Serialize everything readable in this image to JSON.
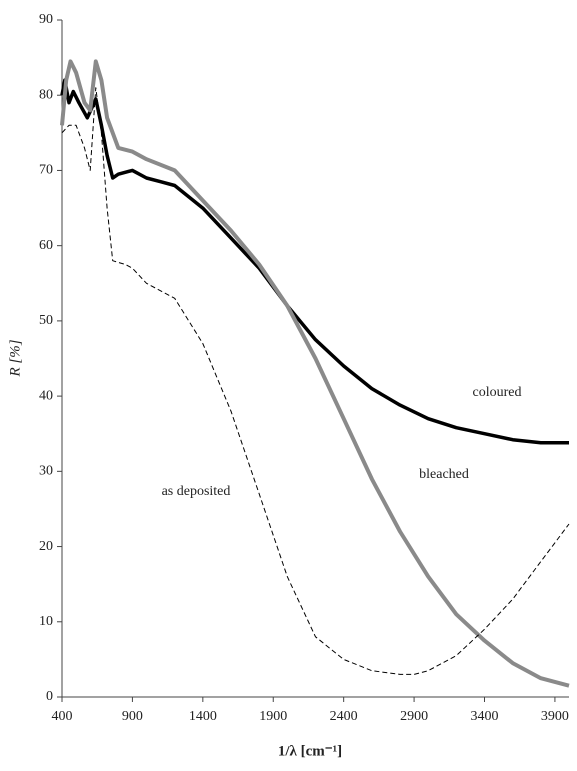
{
  "chart_data": {
    "type": "line",
    "x_label": "1/λ [cm⁻¹]",
    "y_label": "R [%]",
    "xlim": [
      400,
      4000
    ],
    "xticks": [
      400,
      900,
      1400,
      1900,
      2400,
      2900,
      3400,
      3900
    ],
    "ylim": [
      0,
      90
    ],
    "yticks": [
      0,
      10,
      20,
      30,
      40,
      50,
      60,
      70,
      80,
      90
    ],
    "grid": false,
    "legend": false,
    "annotations": [
      "coloured",
      "bleached",
      "as deposited"
    ],
    "series": [
      {
        "name": "coloured",
        "color": "#000000",
        "width": 3.5,
        "line_style": "solid",
        "x": [
          400,
          420,
          450,
          480,
          520,
          580,
          640,
          680,
          720,
          760,
          800,
          900,
          1000,
          1100,
          1200,
          1400,
          1600,
          1800,
          2000,
          2200,
          2400,
          2600,
          2800,
          3000,
          3200,
          3400,
          3600,
          3800,
          4000
        ],
        "values": [
          80,
          82,
          79,
          80.5,
          79,
          77,
          79.5,
          76,
          72,
          69,
          69.5,
          70,
          69,
          68.5,
          68,
          65,
          61,
          57,
          52,
          47.5,
          44,
          41,
          38.8,
          37,
          35.8,
          35,
          34.2,
          33.8,
          33.8
        ]
      },
      {
        "name": "bleached",
        "color": "#8a8a8a",
        "width": 4,
        "line_style": "solid",
        "x": [
          400,
          430,
          460,
          500,
          560,
          600,
          640,
          680,
          720,
          800,
          900,
          1000,
          1200,
          1400,
          1600,
          1800,
          2000,
          2200,
          2400,
          2600,
          2800,
          3000,
          3200,
          3400,
          3600,
          3800,
          4000
        ],
        "values": [
          76,
          82,
          84.5,
          83,
          79,
          78,
          84.5,
          82,
          77,
          73,
          72.5,
          71.5,
          70,
          66,
          62,
          57.5,
          52,
          45,
          37,
          29,
          22,
          16,
          11,
          7.5,
          4.5,
          2.5,
          1.5
        ]
      },
      {
        "name": "as deposited",
        "color": "#000000",
        "width": 1,
        "line_style": "dashed",
        "x": [
          400,
          450,
          500,
          560,
          600,
          640,
          680,
          720,
          760,
          850,
          900,
          1000,
          1100,
          1200,
          1400,
          1600,
          1800,
          2000,
          2200,
          2400,
          2600,
          2800,
          2900,
          3000,
          3200,
          3400,
          3600,
          3800,
          4000
        ],
        "values": [
          75,
          76,
          76,
          73,
          70,
          81,
          75,
          65,
          58,
          57.5,
          57,
          55,
          54,
          53,
          47,
          38,
          27,
          16,
          8,
          5,
          3.5,
          3,
          3,
          3.5,
          5.5,
          9,
          13,
          18,
          23
        ]
      }
    ]
  }
}
